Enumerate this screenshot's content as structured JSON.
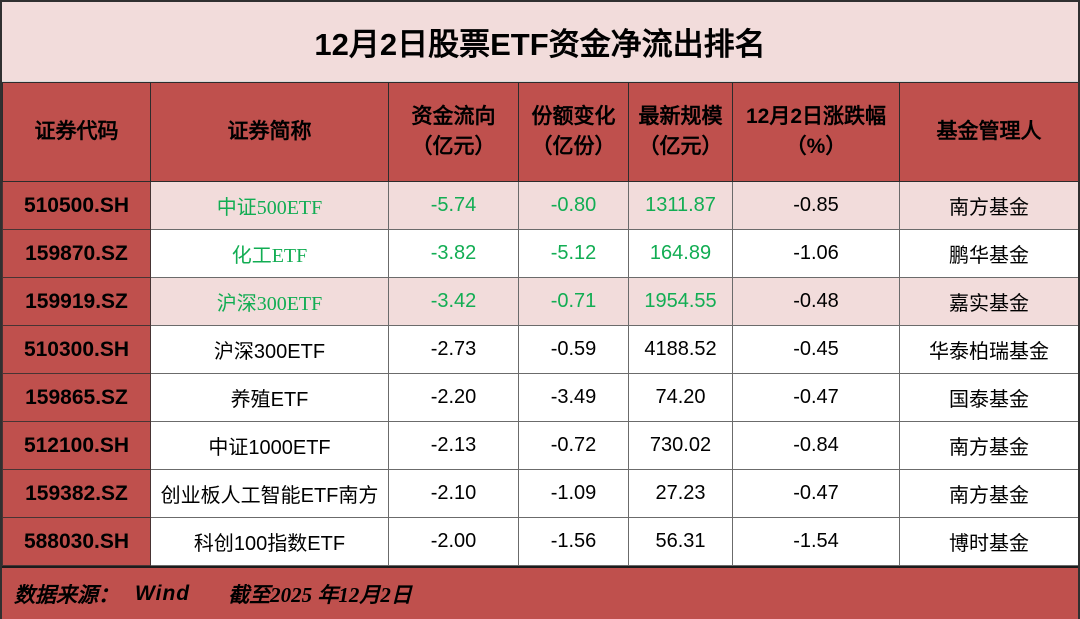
{
  "title": "12月2日股票ETF资金净流出排名",
  "header": {
    "cols": [
      {
        "line1": "证券代码",
        "line2": ""
      },
      {
        "line1": "证券简称",
        "line2": ""
      },
      {
        "line1": "资金流向",
        "line2": "（亿元）"
      },
      {
        "line1": "份额变化",
        "line2": "（亿份）"
      },
      {
        "line1": "最新规模",
        "line2": "（亿元）"
      },
      {
        "line1": "12月2日涨跌幅",
        "line2": "（%）"
      },
      {
        "line1": "基金管理人",
        "line2": ""
      }
    ]
  },
  "chart_data": {
    "type": "table",
    "title": "12月2日股票ETF资金净流出排名",
    "columns": [
      "证券代码",
      "证券简称",
      "资金流向（亿元）",
      "份额变化（亿份）",
      "最新规模（亿元）",
      "12月2日涨跌幅（%）",
      "基金管理人"
    ],
    "rows": [
      [
        "510500.SH",
        "中证500ETF",
        "-5.74",
        "-0.80",
        "1311.87",
        "-0.85",
        "南方基金"
      ],
      [
        "159870.SZ",
        "化工ETF",
        "-3.82",
        "-5.12",
        "164.89",
        "-1.06",
        "鹏华基金"
      ],
      [
        "159919.SZ",
        "沪深300ETF",
        "-3.42",
        "-0.71",
        "1954.55",
        "-0.48",
        "嘉实基金"
      ],
      [
        "510300.SH",
        "沪深300ETF",
        "-2.73",
        "-0.59",
        "4188.52",
        "-0.45",
        "华泰柏瑞基金"
      ],
      [
        "159865.SZ",
        "养殖ETF",
        "-2.20",
        "-3.49",
        "74.20",
        "-0.47",
        "国泰基金"
      ],
      [
        "512100.SH",
        "中证1000ETF",
        "-2.13",
        "-0.72",
        "730.02",
        "-0.84",
        "南方基金"
      ],
      [
        "159382.SZ",
        "创业板人工智能ETF南方",
        "-2.10",
        "-1.09",
        "27.23",
        "-0.47",
        "南方基金"
      ],
      [
        "588030.SH",
        "科创100指数ETF",
        "-2.00",
        "-1.56",
        "56.31",
        "-1.54",
        "博时基金"
      ]
    ]
  },
  "row_styles": [
    {
      "green": true,
      "shaded": true
    },
    {
      "green": true,
      "shaded": false
    },
    {
      "green": true,
      "shaded": true
    },
    {
      "green": false,
      "shaded": false
    },
    {
      "green": false,
      "shaded": false
    },
    {
      "green": false,
      "shaded": false
    },
    {
      "green": false,
      "shaded": false
    },
    {
      "green": false,
      "shaded": false
    }
  ],
  "footer": {
    "source_label": "数据来源：",
    "source": "Wind",
    "asof": "截至2025 年12月2日"
  },
  "colors": {
    "accent_red": "#bf504d",
    "row_pink": "#f2dcdb",
    "negative_green": "#12ad53",
    "text_black": "#000000"
  }
}
